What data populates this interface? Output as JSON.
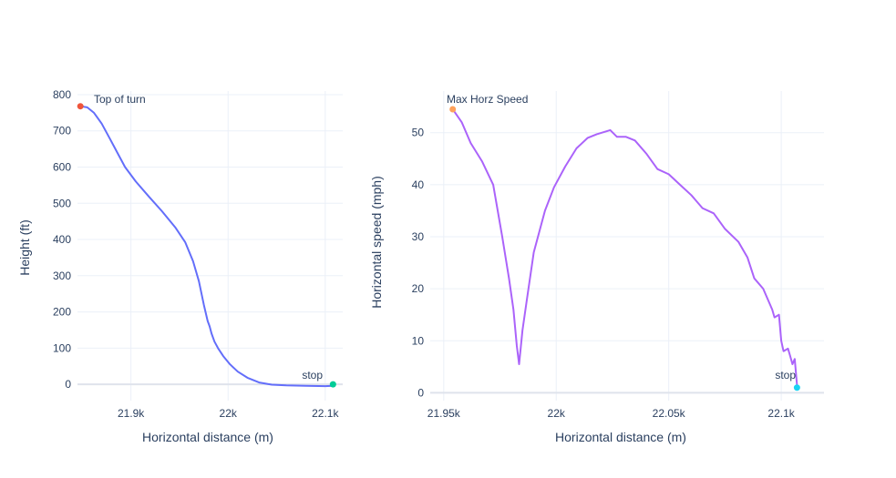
{
  "chart_data": [
    {
      "type": "line",
      "xlabel": "Horizontal distance (m)",
      "ylabel": "Height (ft)",
      "xlim": [
        21845,
        22118
      ],
      "ylim": [
        -45,
        810
      ],
      "x_ticks": [
        21900,
        22000,
        22100
      ],
      "x_tick_labels": [
        "21.9k",
        "22k",
        "22.1k"
      ],
      "y_ticks": [
        0,
        100,
        200,
        300,
        400,
        500,
        600,
        700,
        800
      ],
      "y_tick_labels": [
        "0",
        "100",
        "200",
        "300",
        "400",
        "500",
        "600",
        "700",
        "800"
      ],
      "grid": true,
      "line_color": "#636efa",
      "series": [
        {
          "x": [
            21848,
            21855,
            21862,
            21870,
            21878,
            21886,
            21894,
            21905,
            21918,
            21932,
            21946,
            21956,
            21964,
            21970,
            21975,
            21979,
            21981,
            21983,
            21986,
            21990,
            21995,
            22002,
            22010,
            22020,
            22032,
            22045,
            22060,
            22080,
            22100,
            22108
          ],
          "y": [
            768,
            765,
            750,
            720,
            680,
            640,
            600,
            560,
            520,
            478,
            432,
            392,
            340,
            285,
            220,
            175,
            160,
            140,
            118,
            98,
            78,
            55,
            35,
            18,
            5,
            -1,
            -3,
            -4,
            -5,
            -4
          ]
        }
      ],
      "markers": [
        {
          "x": 21848,
          "y": 768,
          "color": "#ef553b",
          "label": "Top of turn"
        },
        {
          "x": 22108,
          "y": 0,
          "color": "#00cc96",
          "label": "stop"
        }
      ]
    },
    {
      "type": "line",
      "xlabel": "Horizontal distance (m)",
      "ylabel": "Horizontal speed (mph)",
      "xlim": [
        21944,
        22119
      ],
      "ylim": [
        -1.5,
        58
      ],
      "x_ticks": [
        21950,
        22000,
        22050,
        22100
      ],
      "x_tick_labels": [
        "21.95k",
        "22k",
        "22.05k",
        "22.1k"
      ],
      "y_ticks": [
        0,
        10,
        20,
        30,
        40,
        50
      ],
      "y_tick_labels": [
        "0",
        "10",
        "20",
        "30",
        "40",
        "50"
      ],
      "grid": true,
      "line_color": "#ab63fa",
      "series": [
        {
          "x": [
            21954,
            21958,
            21962,
            21967,
            21972,
            21976,
            21979,
            21981,
            21982.5,
            21983.5,
            21985,
            21987,
            21990,
            21995,
            21999,
            22004,
            22009,
            22014,
            22018,
            22024,
            22027,
            22031,
            22035,
            22040,
            22045,
            22050,
            22055,
            22060,
            22065,
            22070,
            22075,
            22081,
            22085,
            22088,
            22092,
            22096,
            22097,
            22099,
            22100,
            22101,
            22103,
            22104,
            22105,
            22106,
            22107
          ],
          "y": [
            54.5,
            52,
            48,
            44.5,
            40,
            30,
            22,
            16,
            9,
            5.5,
            12,
            18,
            27,
            35,
            39.5,
            43.5,
            47,
            49,
            49.7,
            50.5,
            49.2,
            49.2,
            48.5,
            46,
            43,
            42,
            40,
            38,
            35.5,
            34.5,
            31.5,
            29,
            26,
            22,
            20,
            16,
            14.5,
            15,
            10,
            8,
            8.5,
            7,
            5.5,
            6.5,
            1.5
          ]
        }
      ],
      "markers": [
        {
          "x": 21954,
          "y": 54.5,
          "color": "#ffa15a",
          "label": "Max Horz Speed"
        },
        {
          "x": 22107,
          "y": 1,
          "color": "#19d3f3",
          "label": "stop"
        }
      ]
    }
  ]
}
